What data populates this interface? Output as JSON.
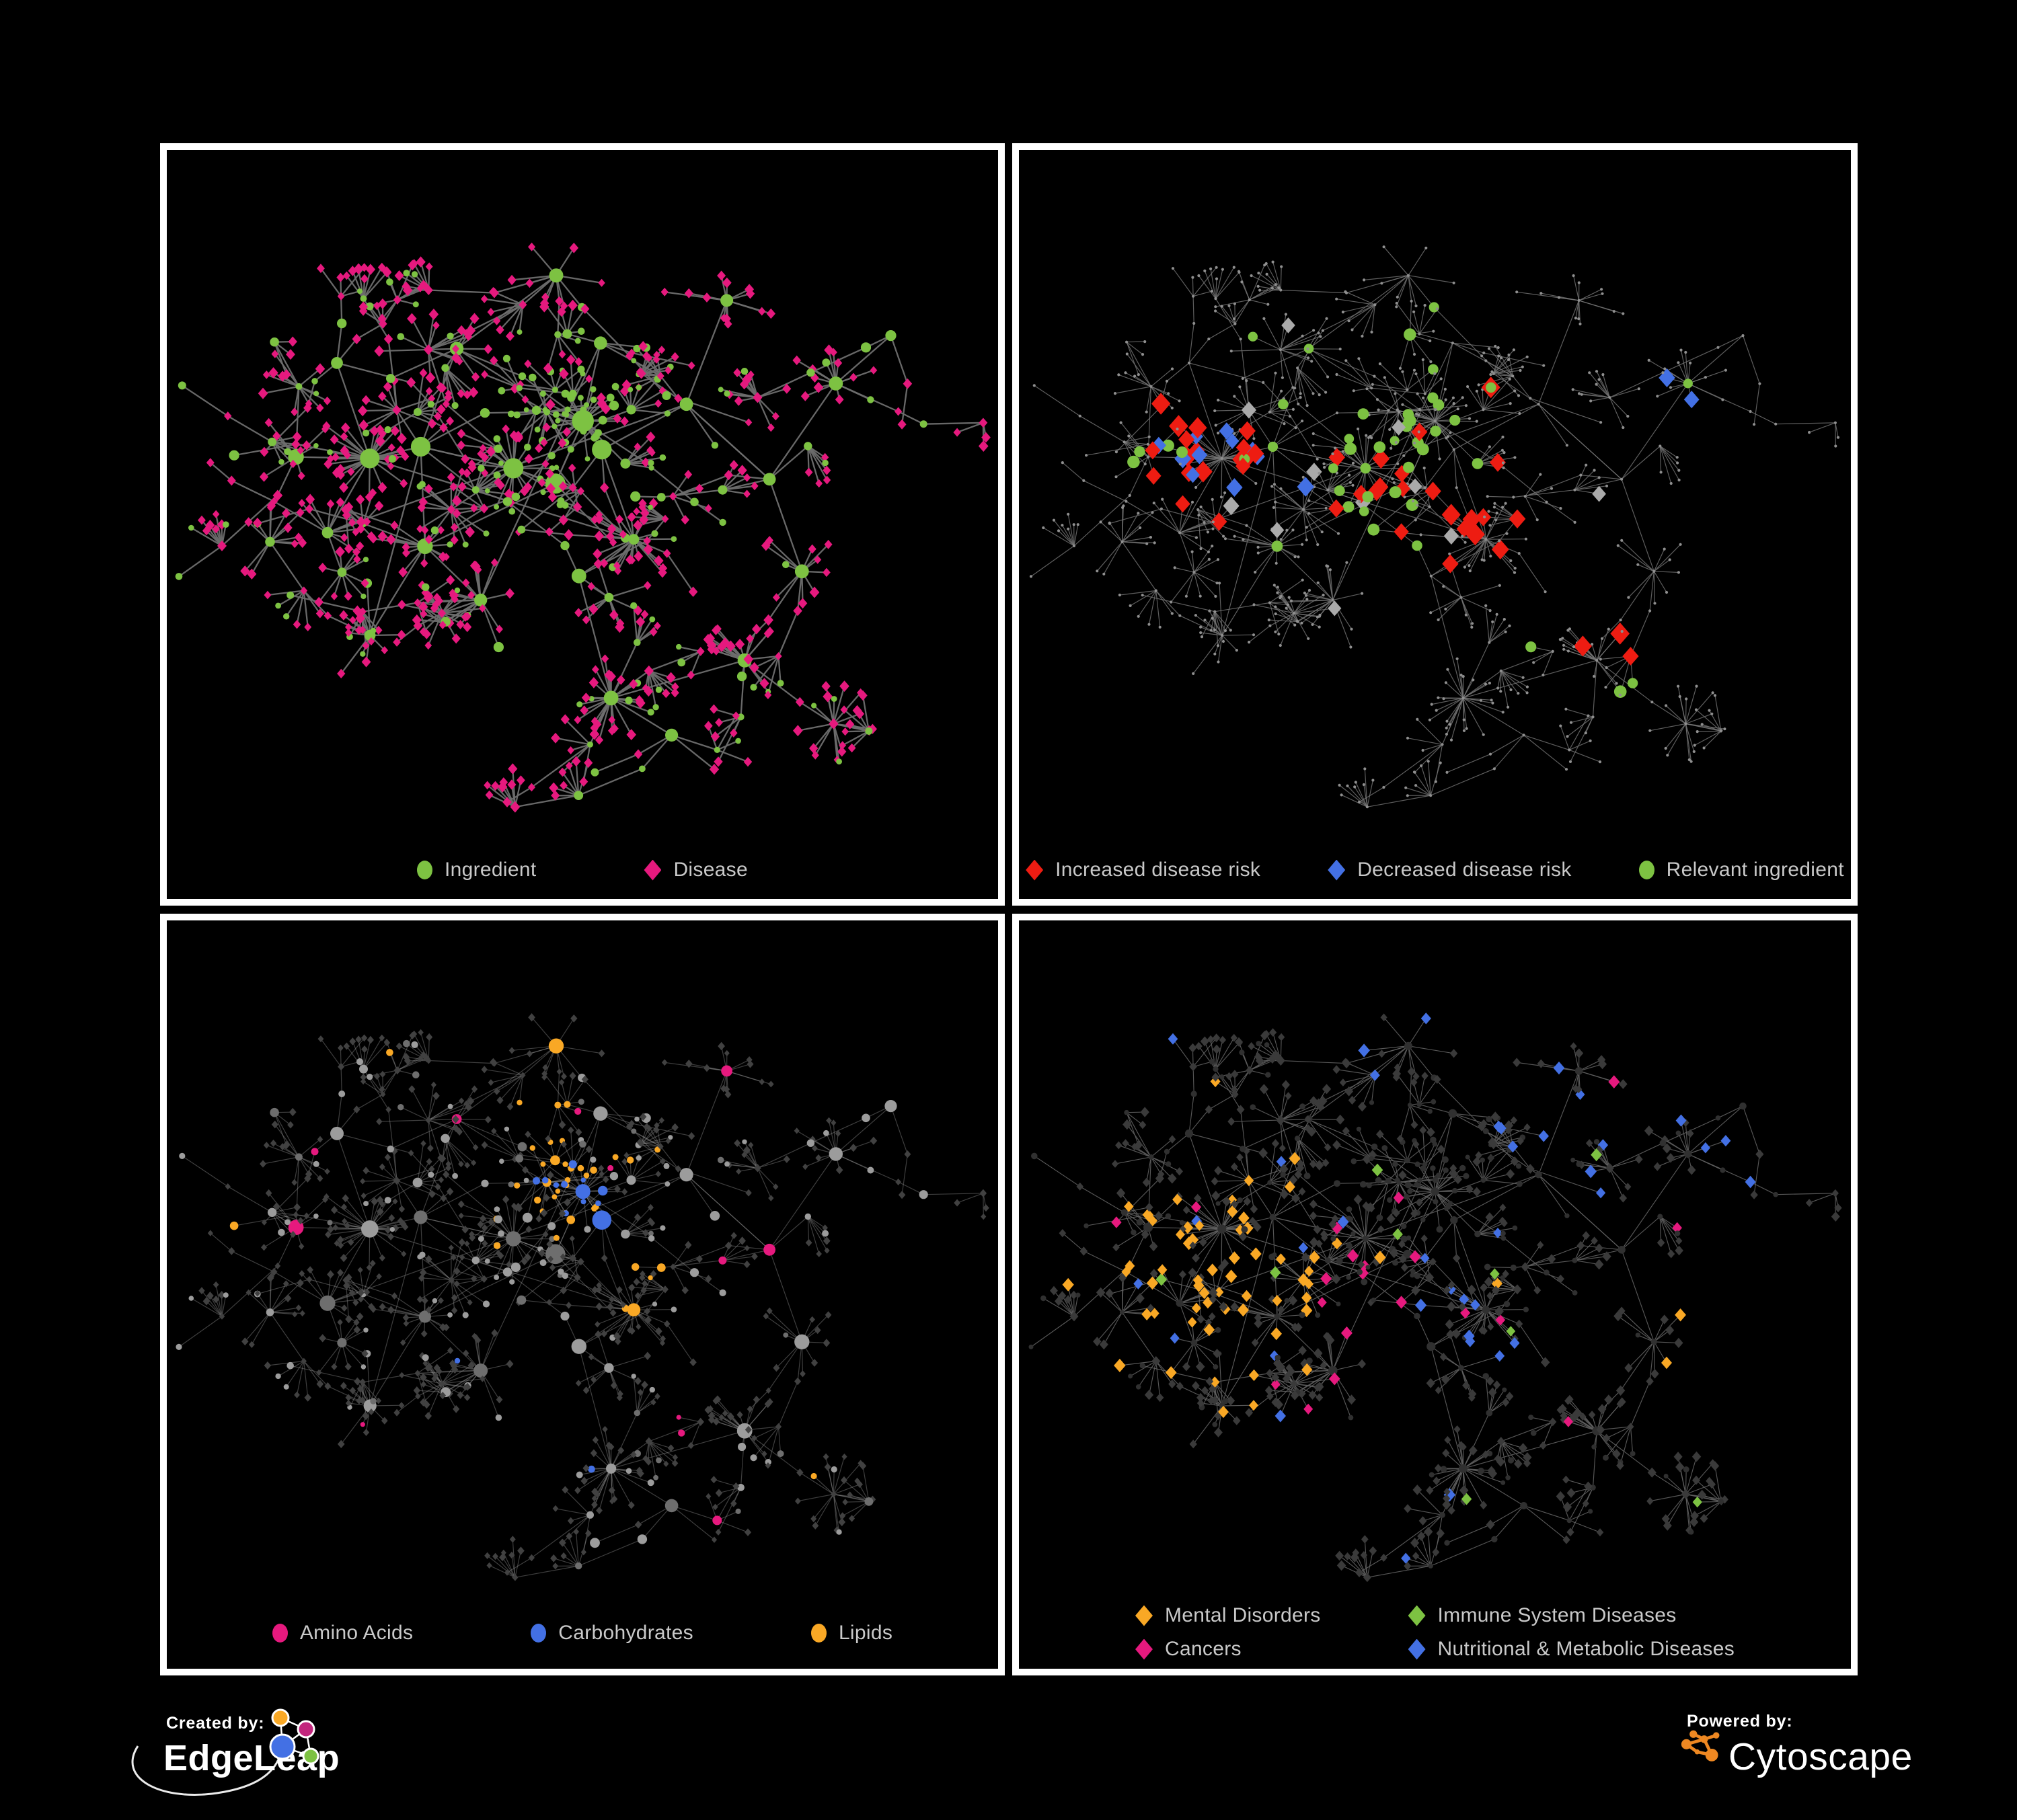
{
  "figure": {
    "background": "#000000",
    "panel_border": "#ffffff",
    "legend_text_color": "#c9c9c9"
  },
  "panels": [
    {
      "id": "ingredient-disease",
      "position": "top-left",
      "legend": [
        {
          "label": "Ingredient",
          "shape": "circle",
          "color": "#7dc242"
        },
        {
          "label": "Disease",
          "shape": "diamond",
          "color": "#e6197e"
        }
      ],
      "network": {
        "seed": 11,
        "edge_color": "#6e6e6e",
        "edge_width": 2.3,
        "edge_opacity": 0.95
      }
    },
    {
      "id": "disease-risk",
      "position": "top-right",
      "legend": [
        {
          "label": "Increased disease risk",
          "shape": "diamond",
          "color": "#ee1c12"
        },
        {
          "label": "Decreased disease risk",
          "shape": "diamond",
          "color": "#4370e4"
        },
        {
          "label": "Relevant ingredient",
          "shape": "circle",
          "color": "#7dc242"
        }
      ],
      "network": {
        "seed": 22,
        "edge_color": "#757575",
        "edge_width": 1.2,
        "edge_opacity": 0.8,
        "base_node_color": "#8f8f8f",
        "neutral_color": "#aaaaaa"
      }
    },
    {
      "id": "macronutrients",
      "position": "bottom-left",
      "legend": [
        {
          "label": "Amino Acids",
          "shape": "circle",
          "color": "#e6197e"
        },
        {
          "label": "Carbohydrates",
          "shape": "circle",
          "color": "#4370e4"
        },
        {
          "label": "Lipids",
          "shape": "circle",
          "color": "#f9a825"
        }
      ],
      "network": {
        "seed": 33,
        "edge_color": "#9a9a9a",
        "edge_width": 1.2,
        "edge_opacity": 0.4,
        "other_ingredient_color": "#9c9c9c",
        "other_ingredient_color_dark": "#6e6e6e",
        "disease_color": "#414141"
      }
    },
    {
      "id": "disease-categories",
      "position": "bottom-right",
      "legend": [
        {
          "label": "Mental Disorders",
          "shape": "diamond",
          "color": "#f9a825"
        },
        {
          "label": "Immune System Diseases",
          "shape": "diamond",
          "color": "#7dc242"
        },
        {
          "label": "Cancers",
          "shape": "diamond",
          "color": "#e6197e"
        },
        {
          "label": "Nutritional & Metabolic Diseases",
          "shape": "diamond",
          "color": "#4370e4"
        }
      ],
      "network": {
        "seed": 44,
        "edge_color": "#606060",
        "edge_width": 1.15,
        "edge_opacity": 0.9,
        "other_disease_color": "#3a3a3a",
        "ingredient_color": "#303030"
      }
    }
  ],
  "footer": {
    "created_by_label": "Created by:",
    "created_by_name": "EdgeLeap",
    "powered_by_label": "Powered by:",
    "powered_by_name": "Cytoscape",
    "edgeleap_colors": {
      "orange": "#f9a825",
      "magenta": "#c2267d",
      "blue": "#4370e4",
      "green": "#7dc142"
    },
    "cytoscape_orange": "#ee8822"
  }
}
